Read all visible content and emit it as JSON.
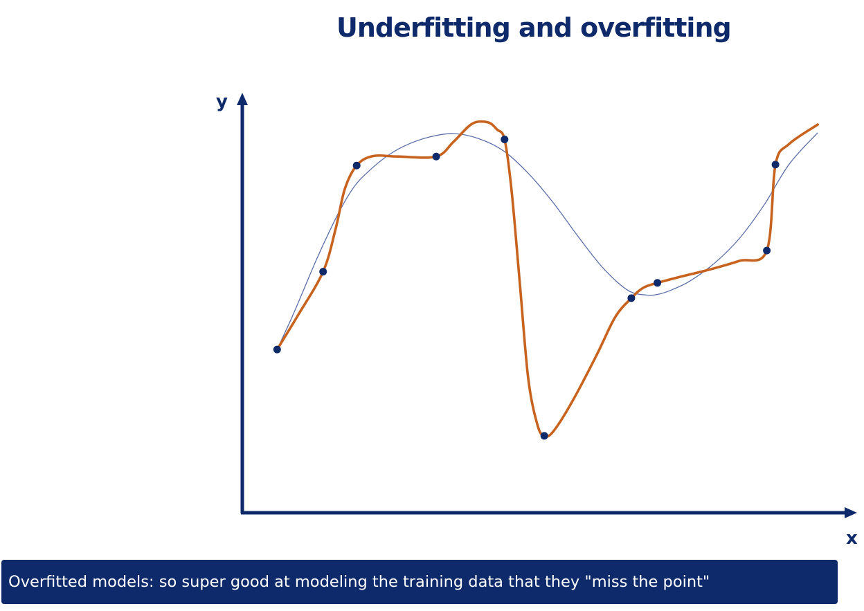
{
  "title": "Underfitting and overfitting",
  "caption": "Overfitted models: so super good at modeling the training data that they \"miss the point\"",
  "colors": {
    "navy": "#0e2a6a",
    "overfit_curve": "#c8631f",
    "smooth_curve": "#5a6ea8",
    "points": "#0e2a6a"
  },
  "chart_data": {
    "type": "scatter",
    "xlabel": "x",
    "ylabel": "y",
    "xlim": [
      0,
      100
    ],
    "ylim": [
      0,
      100
    ],
    "grid": false,
    "points": [
      {
        "x": 5.6,
        "y": 36.3
      },
      {
        "x": 13.0,
        "y": 53.6
      },
      {
        "x": 18.4,
        "y": 77.2
      },
      {
        "x": 31.2,
        "y": 79.2
      },
      {
        "x": 42.2,
        "y": 83.0
      },
      {
        "x": 48.6,
        "y": 17.1
      },
      {
        "x": 62.6,
        "y": 47.7
      },
      {
        "x": 66.8,
        "y": 51.1
      },
      {
        "x": 84.4,
        "y": 58.3
      },
      {
        "x": 85.8,
        "y": 77.4
      }
    ],
    "series": [
      {
        "kind": "smooth-fit",
        "x": [
          5.6,
          8,
          10,
          12,
          14,
          16,
          18,
          20,
          23,
          26,
          30,
          34,
          38,
          42,
          46,
          50,
          54,
          58,
          62,
          65,
          67,
          69,
          72,
          76,
          80,
          84,
          88,
          92.6
        ],
        "y": [
          36.3,
          43.5,
          50.0,
          56.5,
          62.5,
          68.0,
          72.5,
          75.5,
          79.0,
          81.5,
          83.5,
          84.3,
          83.2,
          80.5,
          75.5,
          69.0,
          61.5,
          54.5,
          49.5,
          48.4,
          48.6,
          49.5,
          51.5,
          55.5,
          61.0,
          68.5,
          77.5,
          84.5
        ]
      },
      {
        "kind": "overfit",
        "x": [
          5.6,
          9,
          13.0,
          15,
          16.5,
          18.4,
          21,
          25,
          31.2,
          34,
          37,
          39.5,
          41.0,
          42.2,
          43.3,
          44.6,
          46.0,
          47.5,
          48.6,
          50,
          53,
          57,
          60,
          62.6,
          64.5,
          66.8,
          70,
          75,
          80,
          84.4,
          85.8,
          88,
          92.6
        ],
        "y": [
          36.3,
          44,
          53.6,
          63,
          72,
          77.2,
          79.3,
          79.2,
          79.2,
          82.5,
          86.5,
          86.8,
          85.2,
          83.0,
          72,
          52,
          30,
          19.5,
          17.1,
          18,
          24.5,
          35,
          43.5,
          47.7,
          50.0,
          51.1,
          52.3,
          54,
          56,
          58.3,
          77.4,
          82,
          86.3
        ]
      }
    ]
  }
}
